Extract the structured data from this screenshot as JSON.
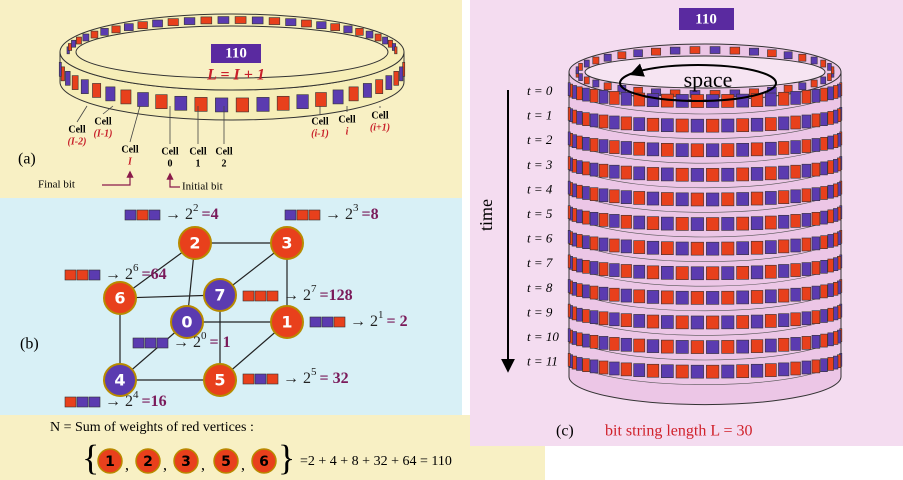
{
  "panel_a": {
    "label": "(a)",
    "rule": "110",
    "equation": "L = I + 1",
    "cells": [
      {
        "word": "Cell",
        "index": "(I-2)"
      },
      {
        "word": "Cell",
        "index": "(I-1)"
      },
      {
        "word": "Cell",
        "index": "I"
      },
      {
        "word": "Cell",
        "index": "0"
      },
      {
        "word": "Cell",
        "index": "1"
      },
      {
        "word": "Cell",
        "index": "2"
      },
      {
        "word": "Cell",
        "index": "(i-1)"
      },
      {
        "word": "Cell",
        "index": "i"
      },
      {
        "word": "Cell",
        "index": "(i+1)"
      }
    ],
    "final_bit": "Final bit",
    "initial_bit": "Initial bit"
  },
  "panel_b": {
    "label": "(b)",
    "nodes": [
      "0",
      "1",
      "2",
      "3",
      "4",
      "5",
      "6",
      "7"
    ],
    "weights": [
      {
        "lhs": "→ 2",
        "exp": "2",
        "rhs": "=4"
      },
      {
        "lhs": "→ 2",
        "exp": "3",
        "rhs": "=8"
      },
      {
        "lhs": "→ 2",
        "exp": "6",
        "rhs": "=64"
      },
      {
        "lhs": "→ 2",
        "exp": "7",
        "rhs": "=128"
      },
      {
        "lhs": "→ 2",
        "exp": "1",
        "rhs": "= 2"
      },
      {
        "lhs": "→ 2",
        "exp": "0",
        "rhs": "= 1"
      },
      {
        "lhs": "→ 2",
        "exp": "5",
        "rhs": "= 32"
      },
      {
        "lhs": "→ 2",
        "exp": "4",
        "rhs": "=16"
      }
    ]
  },
  "sum": {
    "title": "N = Sum of weights of red vertices :",
    "open": "{",
    "items": [
      "1",
      "2",
      "3",
      "5",
      "6"
    ],
    "separator": ",",
    "close": "}",
    "equation": "=2 + 4  + 8  + 32  + 64  = 110"
  },
  "panel_c": {
    "rule": "110",
    "space": "space",
    "time": "time",
    "steps": [
      "t = 0",
      "t = 1",
      "t = 2",
      "t = 3",
      "t = 4",
      "t = 5",
      "t = 6",
      "t = 7",
      "t = 8",
      "t = 9",
      "t = 10",
      "t = 11"
    ],
    "label": "(c)",
    "caption": "bit string length L = 30"
  }
}
